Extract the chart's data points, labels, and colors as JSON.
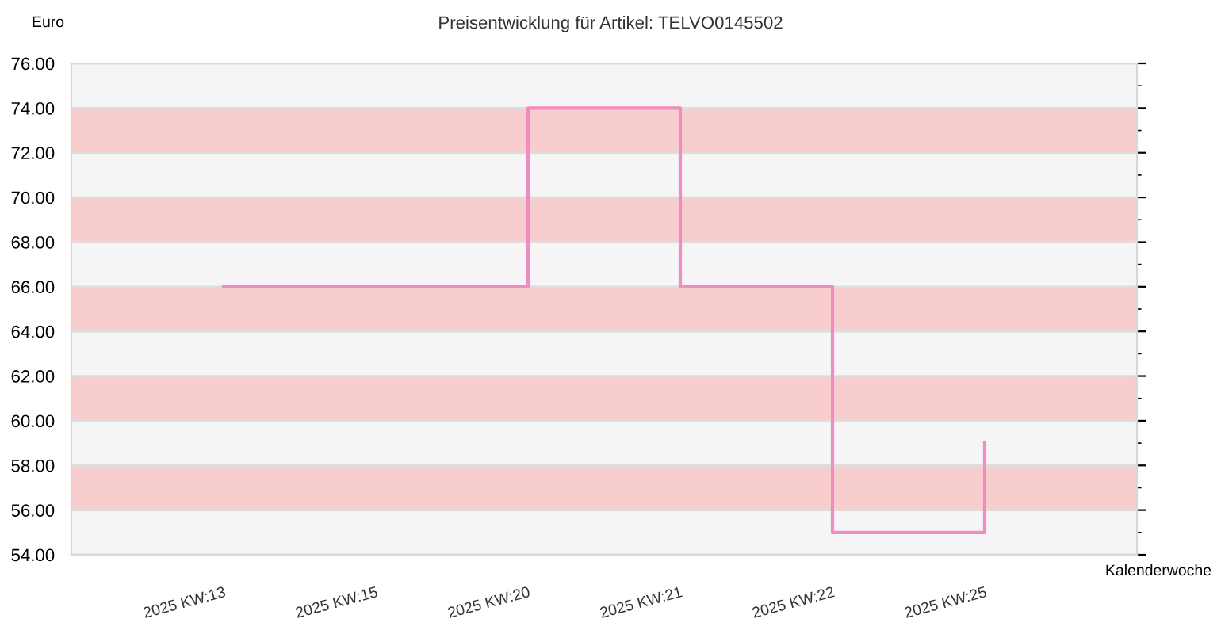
{
  "chart_data": {
    "type": "step",
    "title": "Preisentwicklung für Artikel: TELVO0145502",
    "ylabel": "Euro",
    "xlabel": "Kalenderwoche",
    "categories": [
      "2025 KW:13",
      "2025 KW:15",
      "2025 KW:20",
      "2025 KW:21",
      "2025 KW:22",
      "2025 KW:25"
    ],
    "series": [
      {
        "color": "#f08cc0",
        "values": [
          66,
          66,
          74,
          66,
          55,
          59
        ]
      }
    ],
    "ylim": [
      54,
      76
    ],
    "yticks": [
      {
        "value": 54,
        "label": "54.00"
      },
      {
        "value": 56,
        "label": "56.00"
      },
      {
        "value": 58,
        "label": "58.00"
      },
      {
        "value": 60,
        "label": "60.00"
      },
      {
        "value": 62,
        "label": "62.00"
      },
      {
        "value": 64,
        "label": "64.00"
      },
      {
        "value": 66,
        "label": "66.00"
      },
      {
        "value": 68,
        "label": "68.00"
      },
      {
        "value": 70,
        "label": "70.00"
      },
      {
        "value": 72,
        "label": "72.00"
      },
      {
        "value": 74,
        "label": "74.00"
      },
      {
        "value": 76,
        "label": "76.00"
      }
    ],
    "bands": [
      {
        "axis": "y",
        "from": 56,
        "to": 58,
        "color": "#f8cdcd"
      },
      {
        "axis": "y",
        "from": 60,
        "to": 62,
        "color": "#f8cdcd"
      },
      {
        "axis": "y",
        "from": 64,
        "to": 66,
        "color": "#f8cdcd"
      },
      {
        "axis": "y",
        "from": 68,
        "to": 70,
        "color": "#f8cdcd"
      },
      {
        "axis": "y",
        "from": 72,
        "to": 74,
        "color": "#f8cdcd"
      }
    ],
    "grid": "y",
    "legend": false
  }
}
